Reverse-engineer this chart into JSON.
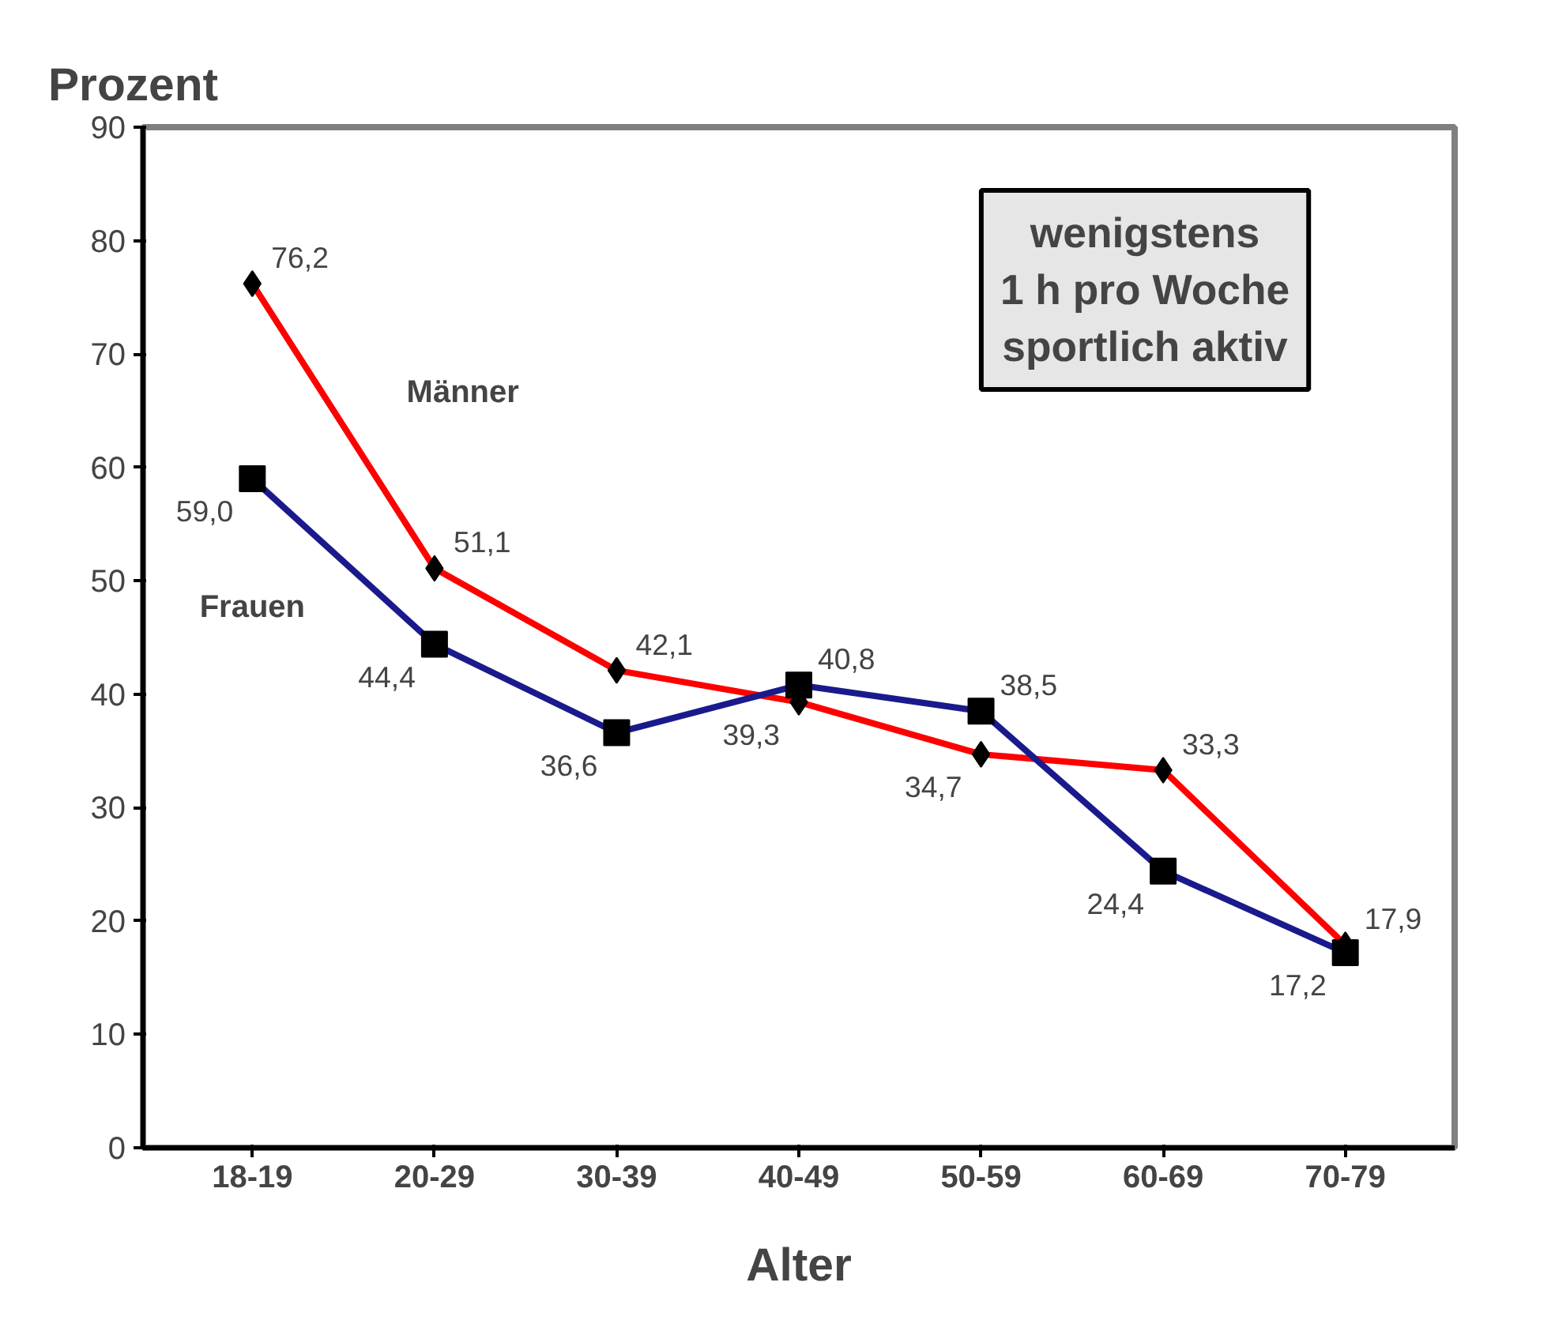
{
  "chart_data": {
    "type": "line",
    "ylabel": "Prozent",
    "xlabel": "Alter",
    "categories": [
      "18-19",
      "20-29",
      "30-39",
      "40-49",
      "50-59",
      "60-69",
      "70-79"
    ],
    "series": [
      {
        "name": "Männer",
        "color": "#ff0000",
        "marker": "diamond",
        "values": [
          76.2,
          51.1,
          42.1,
          39.3,
          34.7,
          33.3,
          17.9
        ],
        "value_labels": [
          "76,2",
          "51,1",
          "42,1",
          "39,3",
          "34,7",
          "33,3",
          "17,9"
        ]
      },
      {
        "name": "Frauen",
        "color": "#1a1a8c",
        "marker": "square",
        "values": [
          59.0,
          44.4,
          36.6,
          40.8,
          38.5,
          24.4,
          17.2
        ],
        "value_labels": [
          "59,0",
          "44,4",
          "36,6",
          "40,8",
          "38,5",
          "24,4",
          "17,2"
        ]
      }
    ],
    "ylim": [
      0,
      90
    ],
    "yticks": [
      0,
      10,
      20,
      30,
      40,
      50,
      60,
      70,
      80,
      90
    ],
    "annotations": [
      "wenigstens\n1 h pro Woche\nsportlich aktiv"
    ],
    "grid": false
  }
}
